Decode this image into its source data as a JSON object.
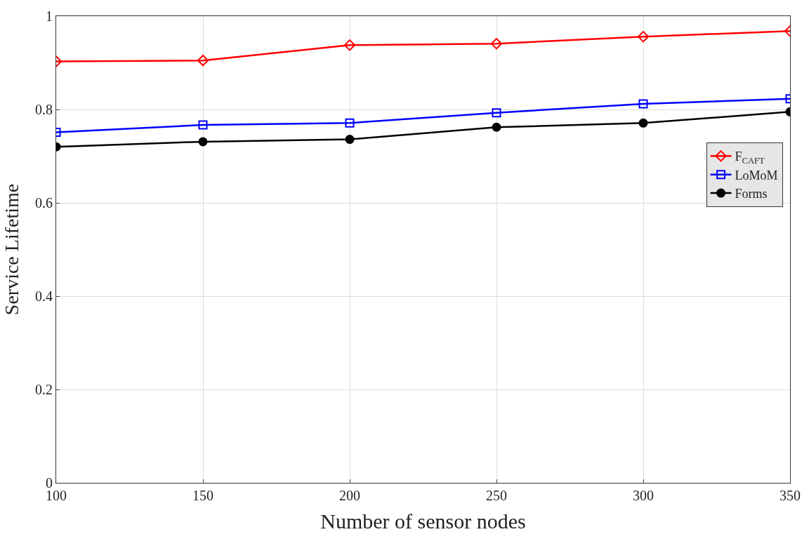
{
  "chart_data": {
    "type": "line",
    "xlabel": "Number of sensor nodes",
    "ylabel": "Service Lifetime",
    "x": [
      100,
      150,
      200,
      250,
      300,
      350
    ],
    "series": [
      {
        "name": "F$_{CAFT}$",
        "color": "#ff0000",
        "marker": "diamond",
        "values": [
          0.903,
          0.905,
          0.938,
          0.941,
          0.956,
          0.968
        ]
      },
      {
        "name": "LoMoM",
        "color": "#0000ff",
        "marker": "square",
        "values": [
          0.751,
          0.767,
          0.771,
          0.793,
          0.812,
          0.823
        ]
      },
      {
        "name": "Forms",
        "color": "#000000",
        "marker": "circle",
        "values": [
          0.72,
          0.731,
          0.736,
          0.762,
          0.771,
          0.795
        ]
      }
    ],
    "xlim": [
      100,
      350
    ],
    "xticks": [
      100,
      150,
      200,
      250,
      300,
      350
    ],
    "ylim": [
      0,
      1
    ],
    "yticks": [
      0,
      0.2,
      0.4,
      0.6,
      0.8,
      1
    ],
    "grid": true,
    "legend": "right",
    "line_style": "solid"
  }
}
